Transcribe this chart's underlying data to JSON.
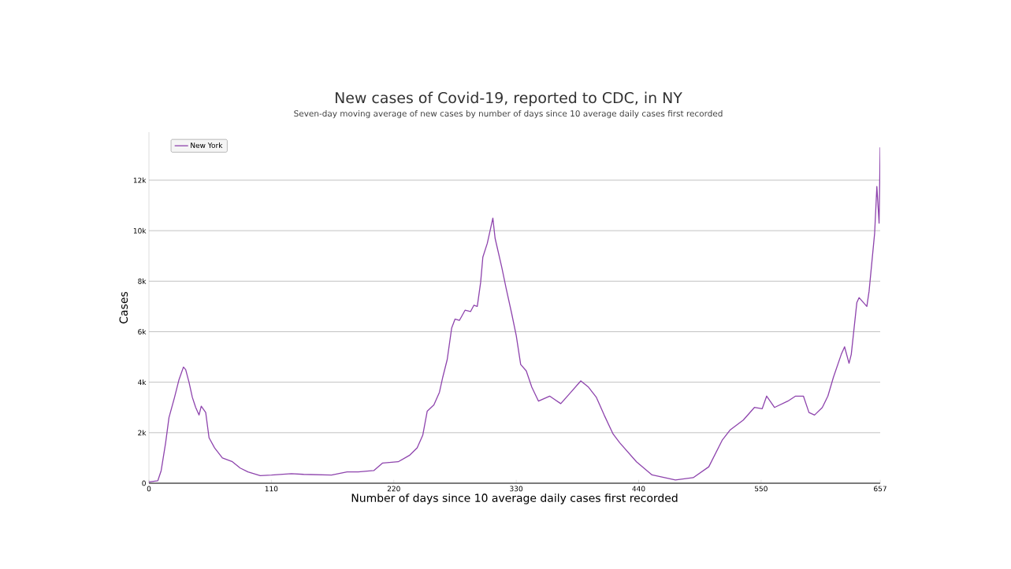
{
  "chart_data": {
    "type": "line",
    "title": "New cases of Covid-19, reported to CDC, in NY",
    "subtitle": "Seven-day moving average of new cases by number of days since 10 average daily cases first recorded",
    "xlabel": "Number of days since 10 average daily cases first recorded",
    "ylabel": "Cases",
    "x": [
      0,
      8,
      11,
      15,
      18,
      23,
      27,
      31,
      33,
      36,
      39,
      42,
      45,
      47,
      51,
      54,
      59,
      66,
      75,
      82,
      89,
      100,
      110,
      128,
      139,
      164,
      178,
      188,
      202,
      210,
      224,
      234,
      241,
      246,
      250,
      256,
      261,
      264,
      268,
      272,
      275,
      279,
      284,
      289,
      292,
      295,
      298,
      300,
      304,
      309,
      311,
      317,
      321,
      326,
      330,
      334,
      339,
      344,
      350,
      360,
      370,
      378,
      388,
      395,
      402,
      409,
      417,
      423,
      438,
      452,
      473,
      489,
      503,
      515,
      522,
      534,
      544,
      551,
      555,
      562,
      574,
      581,
      588,
      593,
      598,
      605,
      610,
      615,
      622,
      625,
      629,
      631,
      636,
      638,
      645,
      647,
      652,
      654,
      656,
      657
    ],
    "series": [
      {
        "name": "New York",
        "color": "#8e44ad",
        "values": [
          50,
          100,
          500,
          1600,
          2600,
          3400,
          4100,
          4600,
          4500,
          4000,
          3400,
          3000,
          2700,
          3050,
          2800,
          1800,
          1400,
          1000,
          850,
          600,
          450,
          300,
          320,
          380,
          350,
          320,
          450,
          450,
          500,
          800,
          850,
          1100,
          1400,
          1900,
          2850,
          3100,
          3600,
          4200,
          4900,
          6150,
          6500,
          6450,
          6850,
          6800,
          7050,
          7000,
          7950,
          8950,
          9500,
          10500,
          9700,
          8550,
          7700,
          6700,
          5850,
          4700,
          4450,
          3800,
          3250,
          3450,
          3150,
          3550,
          4050,
          3800,
          3400,
          2700,
          1950,
          1600,
          850,
          330,
          130,
          220,
          650,
          1700,
          2100,
          2500,
          3000,
          2950,
          3450,
          3000,
          3250,
          3450,
          3450,
          2800,
          2700,
          3000,
          3450,
          4200,
          5100,
          5400,
          4750,
          5100,
          7150,
          7350,
          7000,
          7600,
          9900,
          11750,
          10300,
          13300
        ]
      }
    ],
    "xlim": [
      0,
      657
    ],
    "xticks": [
      0,
      110,
      220,
      330,
      440,
      550,
      657
    ],
    "ylim": [
      0,
      13900
    ],
    "yticks": [
      0,
      {
        "value": 2000,
        "label": "2k"
      },
      {
        "value": 4000,
        "label": "4k"
      },
      {
        "value": 6000,
        "label": "6k"
      },
      {
        "value": 8000,
        "label": "8k"
      },
      {
        "value": 10000,
        "label": "10k"
      },
      {
        "value": 12000,
        "label": "12k"
      }
    ],
    "grid": "y",
    "legend": "top left",
    "marker": "none",
    "line_style": "solid"
  }
}
